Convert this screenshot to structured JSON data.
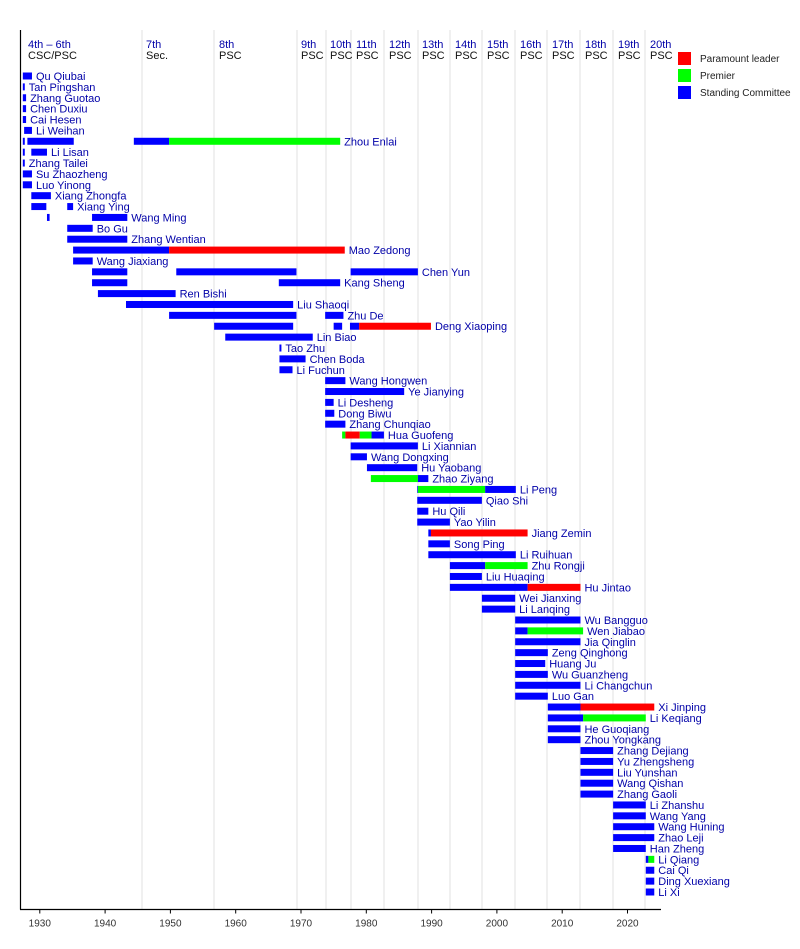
{
  "chart_data": {
    "type": "timeline",
    "xlim": [
      1927,
      2025
    ],
    "x_ticks": [
      "1930",
      "1940",
      "1950",
      "1960",
      "1970",
      "1980",
      "1990",
      "2000",
      "2010",
      "2020"
    ],
    "grid": true,
    "legend_position": "top-right",
    "legend": [
      {
        "role": "L",
        "label": "Paramount leader",
        "color": "#ff0000"
      },
      {
        "role": "P",
        "label": "Premier",
        "color": "#00ff00"
      },
      {
        "role": "S",
        "label": "Standing Committee",
        "color": "#0000ff"
      }
    ],
    "congresses": [
      {
        "line1": "4th – 6th",
        "line2": "CSC/PSC"
      },
      {
        "line1": "7th",
        "line2": "Sec."
      },
      {
        "line1": "8th",
        "line2": "PSC"
      },
      {
        "line1": "9th",
        "line2": "PSC"
      },
      {
        "line1": "10th",
        "line2": "PSC"
      },
      {
        "line1": "11th",
        "line2": "PSC"
      },
      {
        "line1": "12th",
        "line2": "PSC"
      },
      {
        "line1": "13th",
        "line2": "PSC"
      },
      {
        "line1": "14th",
        "line2": "PSC"
      },
      {
        "line1": "15th",
        "line2": "PSC"
      },
      {
        "line1": "16th",
        "line2": "PSC"
      },
      {
        "line1": "17th",
        "line2": "PSC"
      },
      {
        "line1": "18th",
        "line2": "PSC"
      },
      {
        "line1": "19th",
        "line2": "PSC"
      },
      {
        "line1": "20th",
        "line2": "PSC"
      }
    ],
    "rows": [
      {
        "name": "Qu Qiubai",
        "segments": [
          [
            1927.4,
            1928.8,
            "S"
          ]
        ]
      },
      {
        "name": "Tan Pingshan",
        "segments": [
          [
            1927.4,
            1927.7,
            "S"
          ]
        ]
      },
      {
        "name": "Zhang Guotao",
        "segments": [
          [
            1927.4,
            1927.9,
            "S"
          ]
        ]
      },
      {
        "name": "Chen Duxiu",
        "segments": [
          [
            1927.4,
            1927.9,
            "S"
          ]
        ]
      },
      {
        "name": "Cai Hesen",
        "segments": [
          [
            1927.4,
            1927.9,
            "S"
          ]
        ]
      },
      {
        "name": "Li Weihan",
        "segments": [
          [
            1927.6,
            1928.8,
            "S"
          ]
        ]
      },
      {
        "name": "Zhou Enlai",
        "segments": [
          [
            1927.4,
            1927.7,
            "S"
          ],
          [
            1928.1,
            1935.2,
            "S"
          ],
          [
            1944.4,
            1949.8,
            "S"
          ],
          [
            1949.8,
            1976.0,
            "P"
          ]
        ]
      },
      {
        "name": "Li Lisan",
        "segments": [
          [
            1927.4,
            1927.7,
            "S"
          ],
          [
            1928.7,
            1931.1,
            "S"
          ]
        ]
      },
      {
        "name": "Zhang Tailei",
        "segments": [
          [
            1927.4,
            1927.7,
            "S"
          ]
        ]
      },
      {
        "name": "Su Zhaozheng",
        "segments": [
          [
            1927.4,
            1928.8,
            "S"
          ]
        ]
      },
      {
        "name": "Luo Yinong",
        "segments": [
          [
            1927.4,
            1928.8,
            "S"
          ]
        ]
      },
      {
        "name": "Xiang Zhongfa",
        "segments": [
          [
            1928.7,
            1931.7,
            "S"
          ]
        ]
      },
      {
        "name": "Xiang Ying",
        "segments": [
          [
            1928.7,
            1931.0,
            "S"
          ],
          [
            1934.2,
            1935.1,
            "S"
          ]
        ]
      },
      {
        "name": "Wang Ming",
        "segments": [
          [
            1931.1,
            1931.5,
            "S"
          ],
          [
            1938.0,
            1943.4,
            "S"
          ]
        ]
      },
      {
        "name": "Bo Gu",
        "segments": [
          [
            1934.2,
            1938.1,
            "S"
          ]
        ]
      },
      {
        "name": "Zhang Wentian",
        "segments": [
          [
            1934.2,
            1943.4,
            "S"
          ]
        ]
      },
      {
        "name": "Mao Zedong",
        "segments": [
          [
            1935.1,
            1949.8,
            "S"
          ],
          [
            1949.8,
            1976.7,
            "L"
          ]
        ]
      },
      {
        "name": "Wang Jiaxiang",
        "segments": [
          [
            1935.1,
            1938.1,
            "S"
          ]
        ]
      },
      {
        "name": "Chen Yun",
        "segments": [
          [
            1938.0,
            1943.4,
            "S"
          ],
          [
            1950.9,
            1969.3,
            "S"
          ],
          [
            1977.6,
            1987.9,
            "S"
          ]
        ]
      },
      {
        "name": "Kang Sheng",
        "segments": [
          [
            1938.0,
            1943.4,
            "S"
          ],
          [
            1966.6,
            1976.0,
            "S"
          ]
        ]
      },
      {
        "name": "Ren Bishi",
        "segments": [
          [
            1938.9,
            1950.8,
            "S"
          ]
        ]
      },
      {
        "name": "Liu Shaoqi",
        "segments": [
          [
            1943.2,
            1968.8,
            "S"
          ]
        ]
      },
      {
        "name": "Zhu De",
        "segments": [
          [
            1949.8,
            1969.3,
            "S"
          ],
          [
            1973.7,
            1976.5,
            "S"
          ]
        ]
      },
      {
        "name": "Deng Xiaoping",
        "segments": [
          [
            1956.7,
            1968.8,
            "S"
          ],
          [
            1975.0,
            1976.3,
            "S"
          ],
          [
            1977.5,
            1978.9,
            "S"
          ],
          [
            1978.9,
            1989.9,
            "L"
          ]
        ]
      },
      {
        "name": "Lin Biao",
        "segments": [
          [
            1958.4,
            1971.8,
            "S"
          ]
        ]
      },
      {
        "name": "Tao Zhu",
        "segments": [
          [
            1966.7,
            1967.0,
            "S"
          ]
        ]
      },
      {
        "name": "Chen Boda",
        "segments": [
          [
            1966.7,
            1970.7,
            "S"
          ]
        ]
      },
      {
        "name": "Li Fuchun",
        "segments": [
          [
            1966.7,
            1968.7,
            "S"
          ]
        ]
      },
      {
        "name": "Wang Hongwen",
        "segments": [
          [
            1973.7,
            1976.8,
            "S"
          ]
        ]
      },
      {
        "name": "Ye Jianying",
        "segments": [
          [
            1973.7,
            1985.8,
            "S"
          ]
        ]
      },
      {
        "name": "Li Desheng",
        "segments": [
          [
            1973.7,
            1975.0,
            "S"
          ]
        ]
      },
      {
        "name": "Dong Biwu",
        "segments": [
          [
            1973.7,
            1975.1,
            "S"
          ]
        ]
      },
      {
        "name": "Zhang Chunqiao",
        "segments": [
          [
            1973.7,
            1976.8,
            "S"
          ]
        ]
      },
      {
        "name": "Hua Guofeng",
        "segments": [
          [
            1976.3,
            1976.8,
            "P"
          ],
          [
            1976.8,
            1979.0,
            "L"
          ],
          [
            1979.0,
            1980.8,
            "P"
          ],
          [
            1980.8,
            1982.7,
            "S"
          ]
        ]
      },
      {
        "name": "Li Xiannian",
        "segments": [
          [
            1977.6,
            1987.9,
            "S"
          ]
        ]
      },
      {
        "name": "Wang Dongxing",
        "segments": [
          [
            1977.6,
            1980.1,
            "S"
          ]
        ]
      },
      {
        "name": "Hu Yaobang",
        "segments": [
          [
            1980.1,
            1987.8,
            "S"
          ]
        ]
      },
      {
        "name": "Zhao Ziyang",
        "segments": [
          [
            1980.7,
            1987.9,
            "P"
          ],
          [
            1987.9,
            1989.5,
            "S"
          ]
        ]
      },
      {
        "name": "Li Peng",
        "segments": [
          [
            1987.8,
            1987.9,
            "S"
          ],
          [
            1987.9,
            1998.2,
            "P"
          ],
          [
            1998.2,
            2002.9,
            "S"
          ]
        ]
      },
      {
        "name": "Qiao Shi",
        "segments": [
          [
            1987.8,
            1997.7,
            "S"
          ]
        ]
      },
      {
        "name": "Hu Qili",
        "segments": [
          [
            1987.8,
            1989.5,
            "S"
          ]
        ]
      },
      {
        "name": "Yao Yilin",
        "segments": [
          [
            1987.8,
            1992.8,
            "S"
          ]
        ]
      },
      {
        "name": "Jiang Zemin",
        "segments": [
          [
            1989.5,
            1989.9,
            "S"
          ],
          [
            1989.9,
            2004.7,
            "L"
          ]
        ]
      },
      {
        "name": "Song Ping",
        "segments": [
          [
            1989.5,
            1992.8,
            "S"
          ]
        ]
      },
      {
        "name": "Li Ruihuan",
        "segments": [
          [
            1989.5,
            2002.9,
            "S"
          ]
        ]
      },
      {
        "name": "Zhu Rongji",
        "segments": [
          [
            1992.8,
            1998.2,
            "S"
          ],
          [
            1998.2,
            2004.7,
            "P"
          ]
        ]
      },
      {
        "name": "Liu Huaqing",
        "segments": [
          [
            1992.8,
            1997.7,
            "S"
          ]
        ]
      },
      {
        "name": "Hu Jintao",
        "segments": [
          [
            1992.8,
            2004.7,
            "S"
          ],
          [
            2004.7,
            2012.8,
            "L"
          ]
        ]
      },
      {
        "name": "Wei Jianxing",
        "segments": [
          [
            1997.7,
            2002.8,
            "S"
          ]
        ]
      },
      {
        "name": "Li Lanqing",
        "segments": [
          [
            1997.7,
            2002.8,
            "S"
          ]
        ]
      },
      {
        "name": "Wu Bangguo",
        "segments": [
          [
            2002.8,
            2012.8,
            "S"
          ]
        ]
      },
      {
        "name": "Wen Jiabao",
        "segments": [
          [
            2002.8,
            2004.7,
            "S"
          ],
          [
            2004.7,
            2013.2,
            "P"
          ]
        ]
      },
      {
        "name": "Jia Qinglin",
        "segments": [
          [
            2002.8,
            2012.8,
            "S"
          ]
        ]
      },
      {
        "name": "Zeng Qinghong",
        "segments": [
          [
            2002.8,
            2007.8,
            "S"
          ]
        ]
      },
      {
        "name": "Huang Ju",
        "segments": [
          [
            2002.8,
            2007.4,
            "S"
          ]
        ]
      },
      {
        "name": "Wu Guanzheng",
        "segments": [
          [
            2002.8,
            2007.8,
            "S"
          ]
        ]
      },
      {
        "name": "Li Changchun",
        "segments": [
          [
            2002.8,
            2012.8,
            "S"
          ]
        ]
      },
      {
        "name": "Luo Gan",
        "segments": [
          [
            2002.8,
            2007.8,
            "S"
          ]
        ]
      },
      {
        "name": "Xi Jinping",
        "segments": [
          [
            2007.8,
            2012.8,
            "S"
          ],
          [
            2012.8,
            2024.1,
            "L"
          ]
        ]
      },
      {
        "name": "Li Keqiang",
        "segments": [
          [
            2007.8,
            2013.2,
            "S"
          ],
          [
            2013.2,
            2022.8,
            "P"
          ]
        ]
      },
      {
        "name": "He Guoqiang",
        "segments": [
          [
            2007.8,
            2012.8,
            "S"
          ]
        ]
      },
      {
        "name": "Zhou Yongkang",
        "segments": [
          [
            2007.8,
            2012.8,
            "S"
          ]
        ]
      },
      {
        "name": "Zhang Dejiang",
        "segments": [
          [
            2012.8,
            2017.8,
            "S"
          ]
        ]
      },
      {
        "name": "Yu Zhengsheng",
        "segments": [
          [
            2012.8,
            2017.8,
            "S"
          ]
        ]
      },
      {
        "name": "Liu Yunshan",
        "segments": [
          [
            2012.8,
            2017.8,
            "S"
          ]
        ]
      },
      {
        "name": "Wang Qishan",
        "segments": [
          [
            2012.8,
            2017.8,
            "S"
          ]
        ]
      },
      {
        "name": "Zhang Gaoli",
        "segments": [
          [
            2012.8,
            2017.8,
            "S"
          ]
        ]
      },
      {
        "name": "Li Zhanshu",
        "segments": [
          [
            2017.8,
            2022.8,
            "S"
          ]
        ]
      },
      {
        "name": "Wang Yang",
        "segments": [
          [
            2017.8,
            2022.8,
            "S"
          ]
        ]
      },
      {
        "name": "Wang Huning",
        "segments": [
          [
            2017.8,
            2024.1,
            "S"
          ]
        ]
      },
      {
        "name": "Zhao Leji",
        "segments": [
          [
            2017.8,
            2024.1,
            "S"
          ]
        ]
      },
      {
        "name": "Han Zheng",
        "segments": [
          [
            2017.8,
            2022.8,
            "S"
          ]
        ]
      },
      {
        "name": "Li Qiang",
        "segments": [
          [
            2022.8,
            2023.2,
            "S"
          ],
          [
            2023.2,
            2024.1,
            "P"
          ]
        ]
      },
      {
        "name": "Cai Qi",
        "segments": [
          [
            2022.8,
            2024.1,
            "S"
          ]
        ]
      },
      {
        "name": "Ding Xuexiang",
        "segments": [
          [
            2022.8,
            2024.1,
            "S"
          ]
        ]
      },
      {
        "name": "Li Xi",
        "segments": [
          [
            2022.8,
            2024.1,
            "S"
          ]
        ]
      }
    ]
  }
}
